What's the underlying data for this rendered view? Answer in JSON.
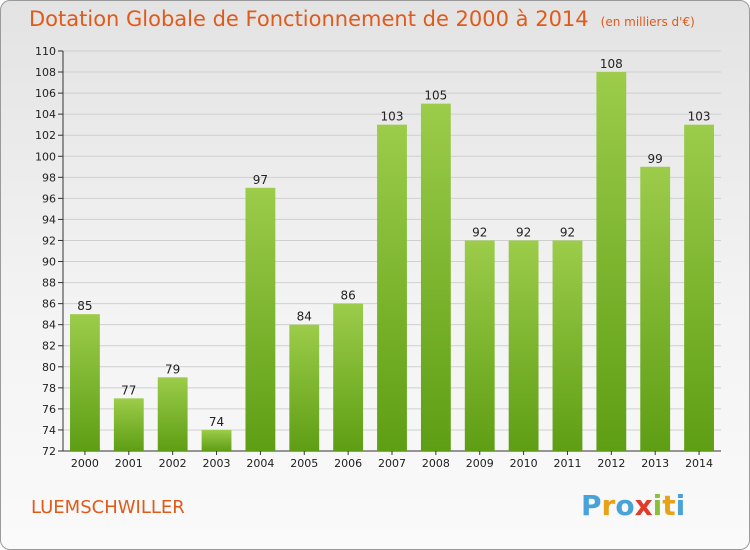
{
  "title": "Dotation Globale de Fonctionnement de 2000 à 2014",
  "subtitle": "(en milliers d'€)",
  "commune": "LUEMSCHWILLER",
  "logo": {
    "letters": [
      "P",
      "r",
      "o",
      "x",
      "i",
      "t",
      "i"
    ],
    "colors": [
      "#4aa3d8",
      "#e8a21a",
      "#4aa3d8",
      "#e03a2a",
      "#8ac03a",
      "#e8a21a",
      "#4aa3d8"
    ]
  },
  "colors": {
    "bar_top": "#9ccc4a",
    "bar_bottom": "#5e9e14",
    "title": "#e05a1a"
  },
  "chart_data": {
    "type": "bar",
    "categories": [
      "2000",
      "2001",
      "2002",
      "2003",
      "2004",
      "2005",
      "2006",
      "2007",
      "2008",
      "2009",
      "2010",
      "2011",
      "2012",
      "2013",
      "2014"
    ],
    "values": [
      85,
      77,
      79,
      74,
      97,
      84,
      86,
      103,
      105,
      92,
      92,
      92,
      108,
      99,
      103
    ],
    "ylim": [
      72,
      110
    ],
    "ytick_step": 2,
    "grid": true,
    "xlabel": "",
    "ylabel": ""
  }
}
